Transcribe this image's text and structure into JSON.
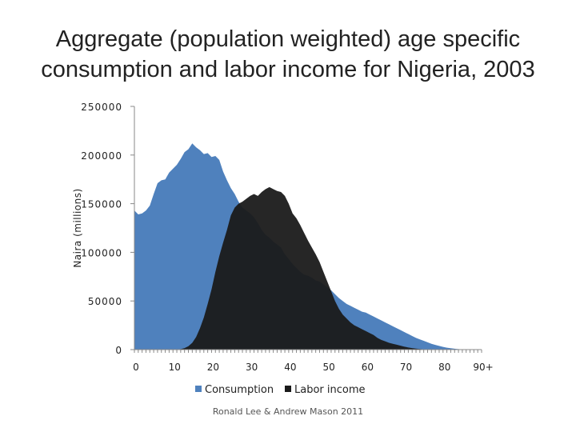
{
  "slide": {
    "title_line1": "Aggregate (population weighted) age specific",
    "title_line2": "consumption and labor income for Nigeria, 2003",
    "credit": "Ronald Lee & Andrew Mason 2011"
  },
  "chart_data": {
    "type": "area",
    "title": "Aggregate (population weighted) age specific consumption and labor income for Nigeria, 2003",
    "xlabel": "",
    "ylabel": "Naira (millions)",
    "ylim": [
      0,
      250000
    ],
    "yticks": [
      0,
      50000,
      100000,
      150000,
      200000,
      250000
    ],
    "ytick_labels": [
      "0",
      "50000",
      "100000",
      "150000",
      "200000",
      "250000"
    ],
    "xlim": [
      0,
      90
    ],
    "xticks": [
      0,
      10,
      20,
      30,
      40,
      50,
      60,
      70,
      80,
      90
    ],
    "xtick_labels": [
      "0",
      "10",
      "20",
      "30",
      "40",
      "50",
      "60",
      "70",
      "80",
      "90+"
    ],
    "legend_position": "bottom",
    "x": [
      0,
      1,
      2,
      3,
      4,
      5,
      6,
      7,
      8,
      9,
      10,
      11,
      12,
      13,
      14,
      15,
      16,
      17,
      18,
      19,
      20,
      21,
      22,
      23,
      24,
      25,
      26,
      27,
      28,
      29,
      30,
      31,
      32,
      33,
      34,
      35,
      36,
      37,
      38,
      39,
      40,
      41,
      42,
      43,
      44,
      45,
      46,
      47,
      48,
      49,
      50,
      51,
      52,
      53,
      54,
      55,
      56,
      57,
      58,
      59,
      60,
      61,
      62,
      63,
      64,
      65,
      66,
      67,
      68,
      69,
      70,
      71,
      72,
      73,
      74,
      75,
      76,
      77,
      78,
      79,
      80,
      81,
      82,
      83,
      84,
      85,
      86,
      87,
      88,
      89,
      90
    ],
    "series": [
      {
        "name": "Consumption",
        "color": "#4f81bd",
        "values": [
          143000,
          139000,
          140000,
          143000,
          148000,
          160000,
          171000,
          174000,
          175000,
          182000,
          186000,
          190000,
          196000,
          203000,
          206000,
          212000,
          208000,
          205000,
          201000,
          202000,
          198000,
          199000,
          195000,
          183000,
          174000,
          166000,
          160000,
          152000,
          146000,
          143000,
          140000,
          136000,
          130000,
          123000,
          118000,
          115000,
          111000,
          108000,
          105000,
          98000,
          93000,
          88000,
          84000,
          80000,
          77000,
          76000,
          74000,
          71000,
          70000,
          67000,
          64000,
          61000,
          57000,
          53000,
          50000,
          47000,
          45000,
          43000,
          41000,
          39000,
          38000,
          36000,
          34000,
          32000,
          30000,
          28000,
          26000,
          24000,
          22000,
          20000,
          18000,
          16000,
          14000,
          12000,
          10500,
          9000,
          7500,
          6000,
          4800,
          3800,
          2800,
          2000,
          1400,
          900,
          500,
          250,
          100,
          40,
          20,
          10,
          5
        ]
      },
      {
        "name": "Labor income",
        "color": "#1a1a1a",
        "values": [
          0,
          0,
          0,
          0,
          0,
          0,
          0,
          0,
          0,
          0,
          0,
          0,
          500,
          1500,
          3500,
          7000,
          13000,
          22000,
          33000,
          47000,
          62000,
          80000,
          96000,
          110000,
          123000,
          138000,
          146000,
          150000,
          152000,
          155000,
          158000,
          160000,
          158000,
          162000,
          165000,
          167000,
          165000,
          163000,
          162000,
          158000,
          150000,
          140000,
          135000,
          128000,
          120000,
          112000,
          105000,
          98000,
          90000,
          80000,
          70000,
          60000,
          50000,
          42000,
          36000,
          32000,
          28000,
          25000,
          23000,
          21000,
          19000,
          17000,
          15000,
          12000,
          10000,
          8500,
          7000,
          6000,
          5000,
          4000,
          3000,
          2200,
          1500,
          1000,
          600,
          300,
          150,
          80,
          40,
          20,
          10,
          5,
          2,
          0,
          0,
          0,
          0,
          0,
          0,
          0,
          0
        ]
      }
    ]
  }
}
